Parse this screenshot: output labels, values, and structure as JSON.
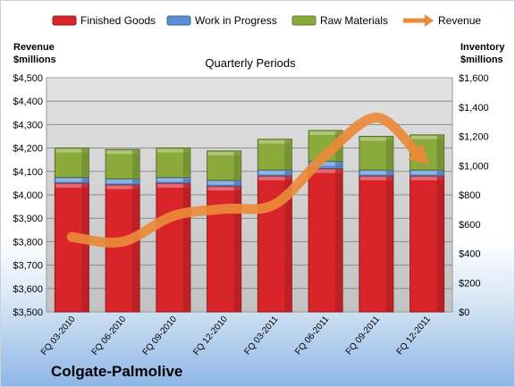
{
  "chart_data": {
    "type": "bar",
    "stacked": true,
    "title": "Quarterly Periods",
    "company": "Colgate-Palmolive",
    "categories": [
      "FQ 03-2010",
      "FQ 06-2010",
      "FQ 09-2010",
      "FQ 12-2010",
      "FQ 03-2011",
      "FQ 06-2011",
      "FQ 09-2011",
      "FQ 12-2011"
    ],
    "left_axis": {
      "label_line1": "Revenue",
      "label_line2": "$millions",
      "min": 3500,
      "max": 4500,
      "step": 100,
      "tick_labels": [
        "$3,500",
        "$3,600",
        "$3,700",
        "$3,800",
        "$3,900",
        "$4,000",
        "$4,100",
        "$4,200",
        "$4,300",
        "$4,400",
        "$4,500"
      ]
    },
    "right_axis": {
      "label_line1": "Inventory",
      "label_line2": "$millions",
      "min": 0,
      "max": 1600,
      "step": 200,
      "tick_labels": [
        "$0",
        "$200",
        "$400",
        "$600",
        "$800",
        "$1,000",
        "$1,200",
        "$1,400",
        "$1,600"
      ]
    },
    "series": [
      {
        "name": "Finished Goods",
        "axis": "right",
        "color": "#d9252a",
        "values": [
          880,
          870,
          880,
          860,
          930,
          980,
          930,
          930
        ]
      },
      {
        "name": "Work in Progress",
        "axis": "right",
        "color": "#5b8fd4",
        "values": [
          40,
          40,
          40,
          40,
          40,
          50,
          40,
          40
        ]
      },
      {
        "name": "Raw Materials",
        "axis": "right",
        "color": "#8aab3c",
        "values": [
          200,
          200,
          200,
          200,
          210,
          210,
          230,
          240
        ]
      },
      {
        "name": "Revenue",
        "axis": "left",
        "type": "line",
        "color": "#ea8a3a",
        "values": [
          3820,
          3800,
          3910,
          3940,
          3960,
          4170,
          4330,
          4140
        ]
      }
    ],
    "grid": true,
    "legend_position": "top"
  }
}
